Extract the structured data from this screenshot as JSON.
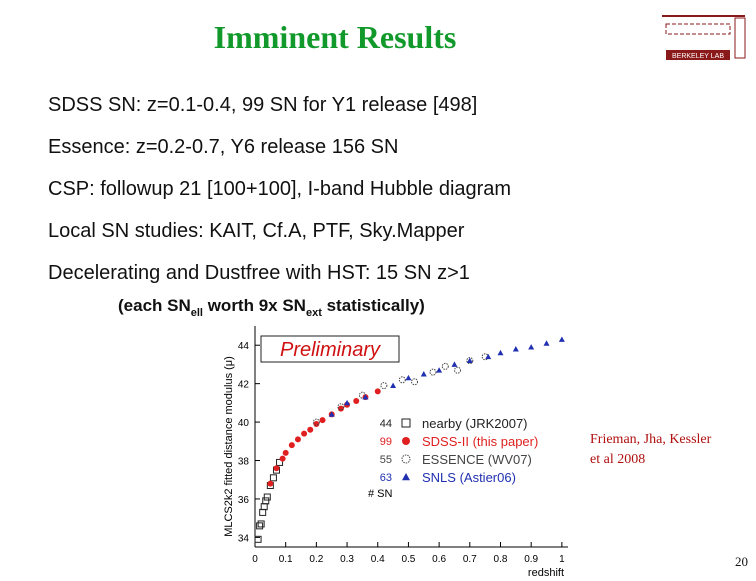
{
  "header": {
    "title": "Imminent Results",
    "logo": "BERKELEY LAB"
  },
  "bullets": [
    "SDSS SN: z=0.1-0.4, 99 SN for Y1 release [498]",
    "Essence: z=0.2-0.7, Y6 release 156 SN",
    "CSP: followup 21 [100+100], I-band Hubble diagram",
    "Local SN studies: KAIT, Cf.A, PTF, Sky.Mapper",
    "Decelerating and Dustfree with HST: 15 SN z>1"
  ],
  "sub_note": [
    "(each SN",
    "ell",
    " worth 9x SN",
    "ext",
    " statistically)"
  ],
  "chart_data": {
    "type": "scatter",
    "annotation": "Preliminary",
    "y_label": "MLCS2k2 fitted distance modulus (μ)",
    "x_label": "redshift",
    "legend_title": "# SN",
    "xlim": [
      0,
      1.02
    ],
    "ylim": [
      33.5,
      45
    ],
    "xticks": [
      0,
      0.1,
      0.2,
      0.3,
      0.4,
      0.5,
      0.6,
      0.7,
      0.8,
      0.9,
      1
    ],
    "yticks": [
      34,
      36,
      38,
      40,
      42,
      44
    ],
    "series": [
      {
        "name": "nearby (JRK2007)",
        "count": "44",
        "color": "#222222",
        "marker": "square",
        "x": [
          0.01,
          0.015,
          0.02,
          0.025,
          0.03,
          0.035,
          0.04,
          0.05,
          0.06,
          0.07,
          0.08
        ],
        "y": [
          33.9,
          34.6,
          34.7,
          35.3,
          35.6,
          35.9,
          36.1,
          36.7,
          37.1,
          37.5,
          37.9
        ]
      },
      {
        "name": "SDSS-II (this paper)",
        "count": "99",
        "color": "#e02020",
        "marker": "circle",
        "x": [
          0.05,
          0.07,
          0.09,
          0.1,
          0.12,
          0.14,
          0.16,
          0.18,
          0.2,
          0.22,
          0.25,
          0.28,
          0.3,
          0.33,
          0.36,
          0.4
        ],
        "y": [
          36.8,
          37.6,
          38.1,
          38.4,
          38.8,
          39.1,
          39.4,
          39.6,
          39.9,
          40.1,
          40.4,
          40.7,
          40.9,
          41.1,
          41.3,
          41.6
        ]
      },
      {
        "name": "ESSENCE (WV07)",
        "count": "55",
        "color": "#444444",
        "marker": "open-circle",
        "x": [
          0.2,
          0.28,
          0.35,
          0.42,
          0.48,
          0.52,
          0.58,
          0.62,
          0.66,
          0.7,
          0.75
        ],
        "y": [
          40.0,
          40.8,
          41.4,
          41.9,
          42.2,
          42.1,
          42.6,
          42.9,
          42.7,
          43.2,
          43.4
        ]
      },
      {
        "name": "SNLS (Astier06)",
        "count": "63",
        "color": "#2030b0",
        "marker": "triangle",
        "x": [
          0.25,
          0.3,
          0.36,
          0.45,
          0.5,
          0.55,
          0.6,
          0.65,
          0.7,
          0.76,
          0.8,
          0.85,
          0.9,
          0.95,
          1.0
        ],
        "y": [
          40.4,
          41.0,
          41.3,
          41.9,
          42.3,
          42.5,
          42.7,
          43.0,
          43.2,
          43.4,
          43.6,
          43.8,
          43.9,
          44.1,
          44.3
        ]
      }
    ]
  },
  "citation": [
    "Frieman, Jha, Kessler",
    "et al 2008"
  ],
  "page_number": "20"
}
